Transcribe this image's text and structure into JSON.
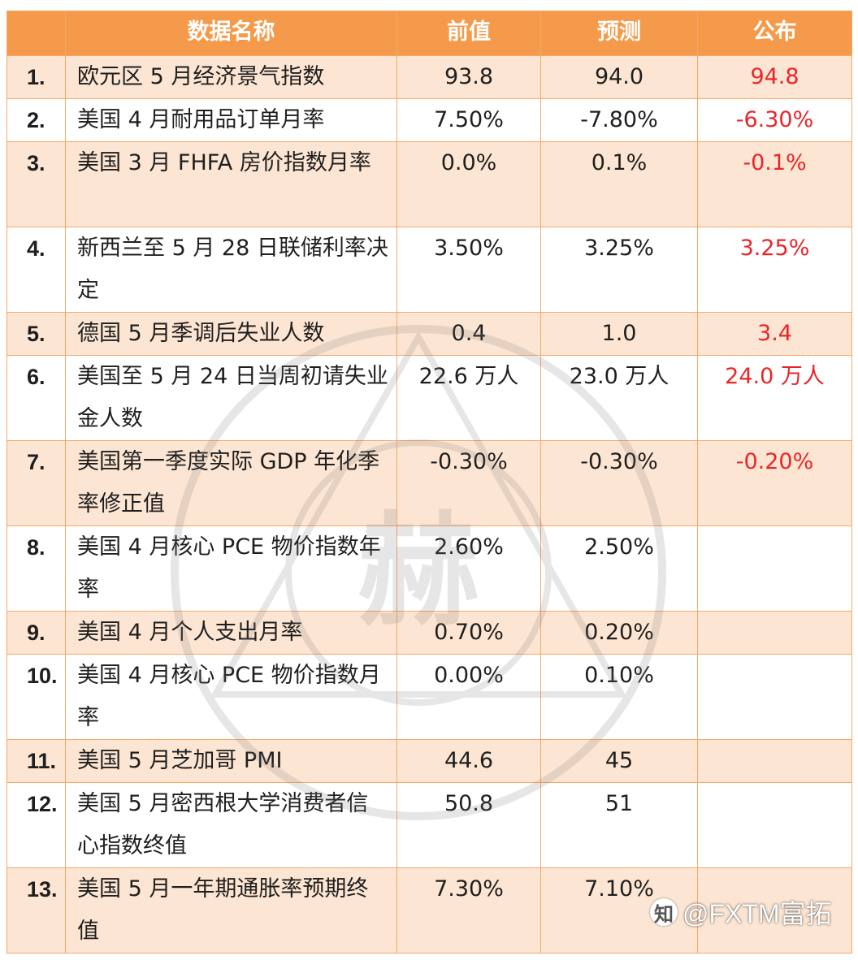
{
  "header": {
    "name": "数据名称",
    "previous": "前值",
    "forecast": "预测",
    "actual": "公布"
  },
  "rows": [
    {
      "num": "1.",
      "name": "欧元区 5 月经济景气指数",
      "previous": "93.8",
      "forecast": "94.0",
      "actual": "94.8"
    },
    {
      "num": "2.",
      "name": "美国 4 月耐用品订单月率",
      "previous": "7.50%",
      "forecast": "-7.80%",
      "actual": "-6.30%"
    },
    {
      "num": "3.",
      "name": "美国 3 月 FHFA 房价指数月率",
      "previous": "0.0%",
      "forecast": "0.1%",
      "actual": "-0.1%"
    },
    {
      "num": "4.",
      "name": "新西兰至 5 月 28 日联储利率决定",
      "previous": "3.50%",
      "forecast": "3.25%",
      "actual": "3.25%"
    },
    {
      "num": "5.",
      "name": "德国 5 月季调后失业人数",
      "previous": "0.4",
      "forecast": "1.0",
      "actual": "3.4"
    },
    {
      "num": "6.",
      "name": "美国至 5 月 24 日当周初请失业金人数",
      "previous": "22.6 万人",
      "forecast": "23.0 万人",
      "actual": "24.0 万人"
    },
    {
      "num": "7.",
      "name": "美国第一季度实际 GDP 年化季率修正值",
      "previous": "-0.30%",
      "forecast": "-0.30%",
      "actual": "-0.20%"
    },
    {
      "num": "8.",
      "name": "美国 4 月核心 PCE 物价指数年率",
      "previous": "2.60%",
      "forecast": "2.50%",
      "actual": ""
    },
    {
      "num": "9.",
      "name": "美国 4 月个人支出月率",
      "previous": "0.70%",
      "forecast": "0.20%",
      "actual": ""
    },
    {
      "num": "10.",
      "name": "美国 4 月核心 PCE 物价指数月率",
      "previous": "0.00%",
      "forecast": "0.10%",
      "actual": ""
    },
    {
      "num": "11.",
      "name": "美国 5 月芝加哥 PMI",
      "previous": "44.6",
      "forecast": "45",
      "actual": ""
    },
    {
      "num": "12.",
      "name": "美国 5 月密西根大学消费者信心指数终值",
      "previous": "50.8",
      "forecast": "51",
      "actual": ""
    },
    {
      "num": "13.",
      "name": "美国 5 月一年期通胀率预期终值",
      "previous": "7.30%",
      "forecast": "7.10%",
      "actual": ""
    }
  ],
  "watermark_text": "赫",
  "brand": {
    "logo": "知",
    "text": "@FXTM富拓"
  },
  "colors": {
    "header_bg": "#f59a4a",
    "stripe": "#fce5d2",
    "border": "#f4a868",
    "actual_text": "#e8262a"
  }
}
